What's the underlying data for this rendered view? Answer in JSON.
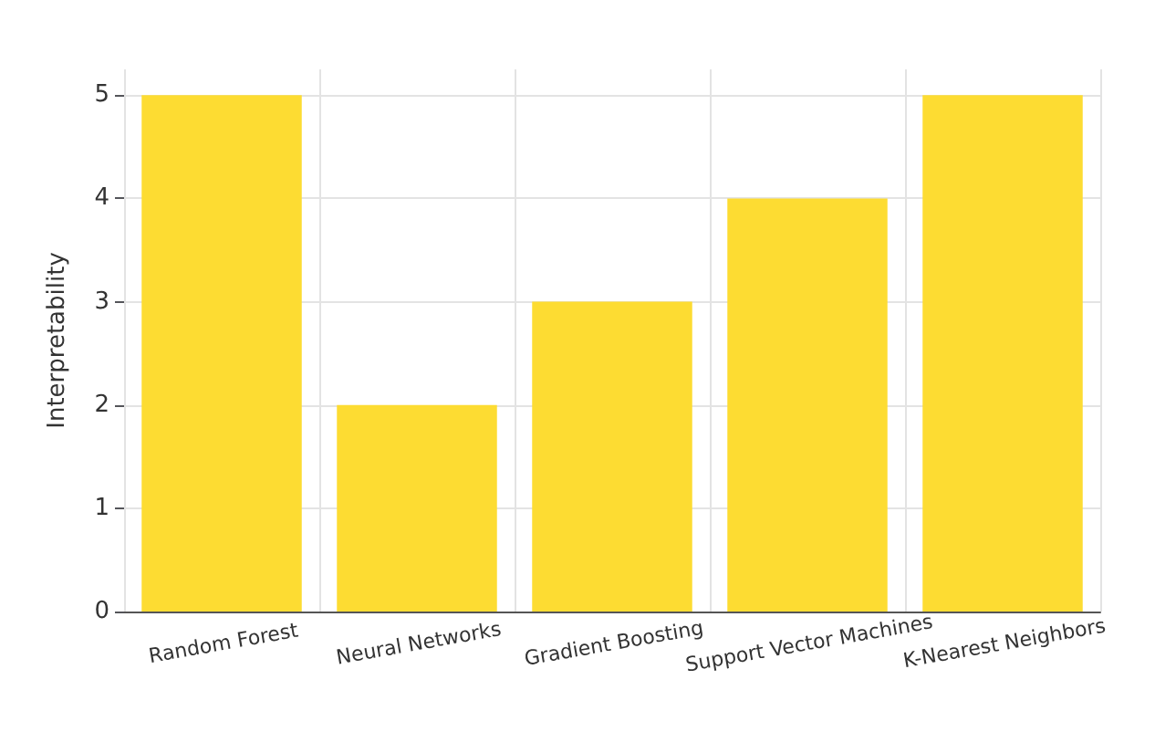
{
  "chart_data": {
    "type": "bar",
    "ylabel": "Interpretability",
    "categories": [
      "Random Forest",
      "Neural Networks",
      "Gradient Boosting",
      "Support Vector Machines",
      "K-Nearest Neighbors"
    ],
    "values": [
      5,
      2,
      3,
      4,
      5
    ],
    "color": "#fddc32",
    "ylim": [
      0,
      5.25
    ],
    "yticks": [
      0,
      1,
      2,
      3,
      4,
      5
    ],
    "grid": true
  }
}
